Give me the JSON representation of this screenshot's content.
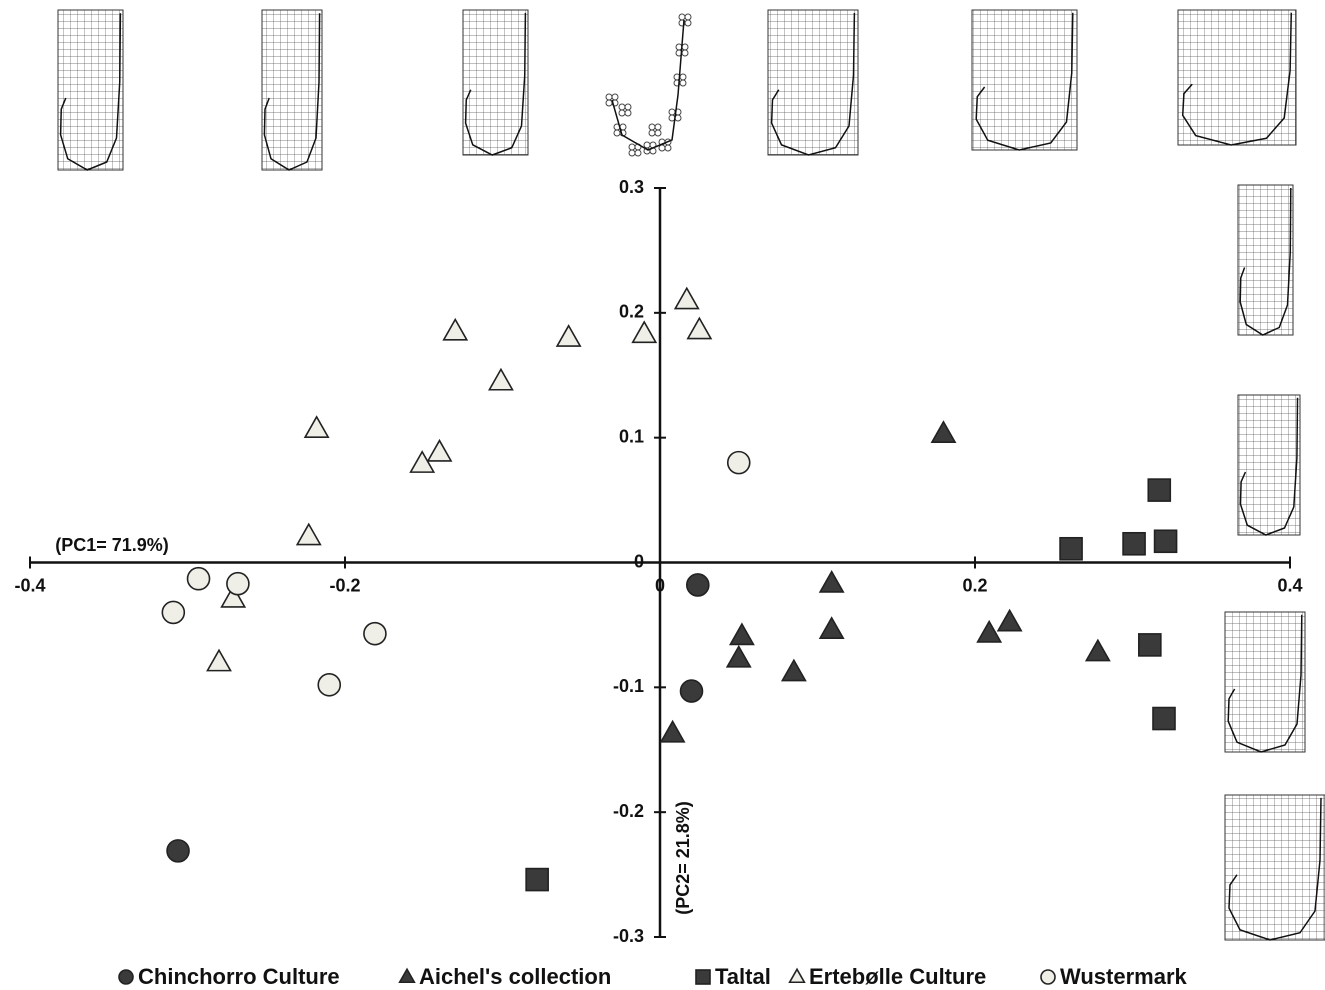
{
  "chart_data": {
    "type": "scatter",
    "x_label": "(PC1= 71.9%)",
    "y_label": "(PC2= 21.8%)",
    "xlim": [
      -0.4,
      0.4
    ],
    "xticks": [
      -0.4,
      -0.2,
      0,
      0.2,
      0.4
    ],
    "ylim": [
      -0.3,
      0.3
    ],
    "yticks": [
      0.3,
      0.2,
      0.1,
      0,
      -0.1,
      -0.2,
      -0.3
    ],
    "series": [
      {
        "name": "Chinchorro Culture",
        "marker": "circle",
        "color": "#3a3a3a",
        "x": [
          0.024,
          0.02,
          -0.306
        ],
        "y": [
          -0.018,
          -0.103,
          -0.231
        ]
      },
      {
        "name": "Aichel's collection",
        "marker": "triangle",
        "color": "#3a3a3a",
        "x": [
          0.18,
          0.109,
          0.109,
          0.052,
          0.05,
          0.085,
          0.209,
          0.222,
          0.278,
          0.008
        ],
        "y": [
          0.103,
          -0.017,
          -0.054,
          -0.059,
          -0.077,
          -0.088,
          -0.057,
          -0.048,
          -0.072,
          -0.137
        ]
      },
      {
        "name": "Taltal",
        "marker": "square",
        "color": "#3a3a3a",
        "x": [
          0.317,
          0.261,
          0.301,
          0.321,
          0.311,
          0.32,
          -0.078
        ],
        "y": [
          0.058,
          0.011,
          0.015,
          0.017,
          -0.066,
          -0.125,
          -0.254
        ]
      },
      {
        "name": "Ertebølle Culture",
        "marker": "triangle",
        "color": "#efefe8",
        "x": [
          0.017,
          0.025,
          -0.01,
          -0.058,
          -0.13,
          -0.101,
          -0.218,
          -0.14,
          -0.151,
          -0.223,
          -0.271,
          -0.28
        ],
        "y": [
          0.21,
          0.186,
          0.183,
          0.18,
          0.185,
          0.145,
          0.107,
          0.088,
          0.079,
          0.021,
          -0.029,
          -0.08
        ]
      },
      {
        "name": "Wustermark",
        "marker": "circle",
        "color": "#efefe8",
        "x": [
          0.05,
          -0.293,
          -0.268,
          -0.309,
          -0.181,
          -0.21
        ],
        "y": [
          0.08,
          -0.013,
          -0.017,
          -0.04,
          -0.057,
          -0.098
        ]
      }
    ]
  }
}
